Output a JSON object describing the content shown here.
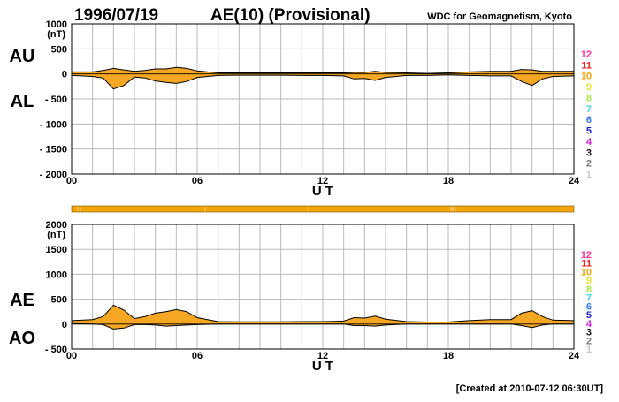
{
  "header": {
    "date": "1996/07/19",
    "title": "AE(10) (Provisional)",
    "source": "WDC for Geomagnetism, Kyoto"
  },
  "footer": {
    "created": "[Created at 2010-07-12 06:30UT]"
  },
  "colors": {
    "fill": "#f5a623",
    "bar": "#f3a50a",
    "grid": "#b8b8b8",
    "station_counts": [
      "#ff3399",
      "#e8201a",
      "#f5a20a",
      "#e9e12b",
      "#a7e84a",
      "#3ad6e6",
      "#2f7cf2",
      "#2424c8",
      "#d81bd8",
      "#111111",
      "#777777",
      "#c8c8c8"
    ]
  },
  "station_counts": [
    "12",
    "11",
    "10",
    "9",
    "8",
    "7",
    "6",
    "5",
    "4",
    "3",
    "2",
    "1"
  ],
  "chart_data": [
    {
      "type": "area",
      "panel": "top",
      "series_labels": [
        "AU",
        "AL"
      ],
      "xlabel": "U T",
      "unit": "(nT)",
      "xlim": [
        0,
        24
      ],
      "ylim": [
        -2000,
        1000
      ],
      "xticks": [
        "00",
        "06",
        "12",
        "18",
        "24"
      ],
      "yticks": [
        "1000",
        "500",
        "0",
        "- 500",
        "- 1000",
        "- 1500",
        "- 2000"
      ],
      "grid": true,
      "x": [
        0,
        1,
        1.5,
        2,
        2.5,
        3,
        3.5,
        4,
        4.5,
        5,
        5.5,
        6,
        7,
        8,
        9,
        10,
        11,
        12,
        13,
        13.5,
        14,
        14.5,
        15,
        16,
        17,
        18,
        19,
        20,
        21,
        21.5,
        22,
        22.5,
        23,
        24
      ],
      "upper": [
        40,
        40,
        70,
        110,
        80,
        50,
        70,
        100,
        100,
        130,
        110,
        60,
        20,
        20,
        20,
        20,
        20,
        20,
        20,
        30,
        30,
        50,
        30,
        20,
        10,
        20,
        40,
        50,
        50,
        90,
        80,
        50,
        50,
        50
      ],
      "lower": [
        -30,
        -50,
        -80,
        -300,
        -230,
        -60,
        -80,
        -140,
        -170,
        -190,
        -150,
        -70,
        -30,
        -25,
        -25,
        -25,
        -30,
        -30,
        -40,
        -100,
        -90,
        -130,
        -70,
        -30,
        -30,
        -20,
        -30,
        -40,
        -40,
        -150,
        -230,
        -100,
        -50,
        -40
      ]
    },
    {
      "type": "area",
      "panel": "bottom",
      "series_labels": [
        "AE",
        "AO"
      ],
      "xlabel": "U T",
      "unit": "(nT)",
      "xlim": [
        0,
        24
      ],
      "ylim": [
        -500,
        2000
      ],
      "xticks": [
        "00",
        "06",
        "12",
        "18",
        "24"
      ],
      "yticks": [
        "2000",
        "1500",
        "1000",
        "500",
        "0",
        "- 500"
      ],
      "grid": true,
      "x": [
        0,
        1,
        1.5,
        2,
        2.5,
        3,
        3.5,
        4,
        4.5,
        5,
        5.5,
        6,
        7,
        8,
        9,
        10,
        11,
        12,
        13,
        13.5,
        14,
        14.5,
        15,
        16,
        17,
        18,
        19,
        20,
        21,
        21.5,
        22,
        22.5,
        23,
        24
      ],
      "upper": [
        70,
        90,
        150,
        380,
        280,
        110,
        150,
        220,
        250,
        290,
        250,
        130,
        50,
        45,
        45,
        45,
        50,
        50,
        60,
        130,
        120,
        160,
        100,
        50,
        40,
        40,
        70,
        90,
        90,
        220,
        270,
        150,
        80,
        70
      ],
      "lower": [
        10,
        0,
        -10,
        -100,
        -80,
        -10,
        -10,
        -20,
        -40,
        -30,
        -20,
        -10,
        0,
        0,
        0,
        0,
        0,
        0,
        0,
        -30,
        -30,
        -40,
        -20,
        0,
        0,
        0,
        0,
        0,
        0,
        -30,
        -70,
        -20,
        0,
        0
      ]
    }
  ]
}
